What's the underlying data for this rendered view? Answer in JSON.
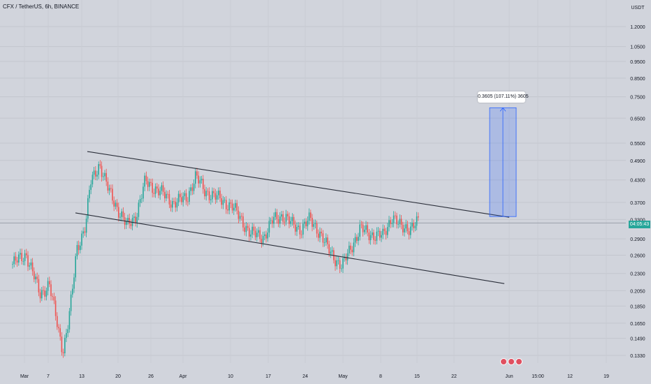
{
  "header": {
    "title": "CFX / TetherUS, 6h, BINANCE"
  },
  "price_scale": {
    "currency": "USDT",
    "current_price_tag": "04:05:43",
    "current_price_color": "#26a69a"
  },
  "measure": {
    "label": "0.3605 (107.11%) 3605"
  },
  "chart_data": {
    "type": "candlestick",
    "title": "CFX / TetherUS, 6h, BINANCE",
    "ylabel": "USDT",
    "y_scale": "log",
    "ylim": [
      0.127,
      1.33
    ],
    "y_ticks": [
      "1.2000",
      "1.0500",
      "0.9500",
      "0.8500",
      "0.7500",
      "0.6500",
      "0.5500",
      "0.4900",
      "0.4300",
      "0.3700",
      "0.3300",
      "0.2900",
      "0.2600",
      "0.2300",
      "0.2050",
      "0.1850",
      "0.1650",
      "0.1490",
      "0.1330"
    ],
    "x_ticks": [
      "Mar",
      "7",
      "13",
      "20",
      "26",
      "Apr",
      "10",
      "17",
      "24",
      "May",
      "8",
      "15",
      "22",
      "Jun",
      "15:00",
      "12",
      "19"
    ],
    "colors": {
      "up": "#26a69a",
      "down": "#ef5350",
      "background": "#d1d4dc"
    },
    "price_path": [
      {
        "date": "Mar 1",
        "price": 0.245
      },
      {
        "date": "Mar 4",
        "price": 0.262
      },
      {
        "date": "Mar 7",
        "price": 0.2
      },
      {
        "date": "Mar 9",
        "price": 0.215
      },
      {
        "date": "Mar 11",
        "price": 0.158
      },
      {
        "date": "Mar 12",
        "price": 0.138
      },
      {
        "date": "Mar 13",
        "price": 0.16
      },
      {
        "date": "Mar 14",
        "price": 0.2
      },
      {
        "date": "Mar 15",
        "price": 0.27
      },
      {
        "date": "Mar 17",
        "price": 0.32
      },
      {
        "date": "Mar 18",
        "price": 0.42
      },
      {
        "date": "Mar 20",
        "price": 0.48
      },
      {
        "date": "Mar 22",
        "price": 0.4
      },
      {
        "date": "Mar 24",
        "price": 0.355
      },
      {
        "date": "Mar 26",
        "price": 0.315
      },
      {
        "date": "Mar 28",
        "price": 0.34
      },
      {
        "date": "Mar 30",
        "price": 0.425
      },
      {
        "date": "Apr 2",
        "price": 0.4
      },
      {
        "date": "Apr 5",
        "price": 0.37
      },
      {
        "date": "Apr 8",
        "price": 0.38
      },
      {
        "date": "Apr 10",
        "price": 0.44
      },
      {
        "date": "Apr 12",
        "price": 0.4
      },
      {
        "date": "Apr 15",
        "price": 0.38
      },
      {
        "date": "Apr 18",
        "price": 0.36
      },
      {
        "date": "Apr 20",
        "price": 0.33
      },
      {
        "date": "Apr 22",
        "price": 0.3
      },
      {
        "date": "Apr 25",
        "price": 0.295
      },
      {
        "date": "Apr 27",
        "price": 0.33
      },
      {
        "date": "Apr 29",
        "price": 0.34
      },
      {
        "date": "May 1",
        "price": 0.32
      },
      {
        "date": "May 3",
        "price": 0.31
      },
      {
        "date": "May 5",
        "price": 0.33
      },
      {
        "date": "May 7",
        "price": 0.305
      },
      {
        "date": "May 9",
        "price": 0.27
      },
      {
        "date": "May 11",
        "price": 0.25
      },
      {
        "date": "May 12",
        "price": 0.24
      },
      {
        "date": "May 14",
        "price": 0.275
      },
      {
        "date": "May 16",
        "price": 0.31
      },
      {
        "date": "May 18",
        "price": 0.3
      },
      {
        "date": "May 21",
        "price": 0.295
      },
      {
        "date": "May 23",
        "price": 0.34
      },
      {
        "date": "May 25",
        "price": 0.31
      },
      {
        "date": "May 27",
        "price": 0.315
      },
      {
        "date": "May 29",
        "price": 0.325
      }
    ],
    "channel_lines": [
      {
        "name": "upper",
        "from": {
          "date": "Mar 15",
          "price": 0.52
        },
        "to": {
          "date": "May 31",
          "price": 0.335
        }
      },
      {
        "name": "lower",
        "from": {
          "date": "Mar 12",
          "price": 0.345
        },
        "to": {
          "date": "May 31",
          "price": 0.215
        }
      }
    ],
    "price_range": {
      "from_price": 0.3366,
      "to_price": 0.697,
      "change": "0.3605",
      "percent": "107.11%",
      "label": "0.3605 (107.11%) 3605"
    }
  }
}
